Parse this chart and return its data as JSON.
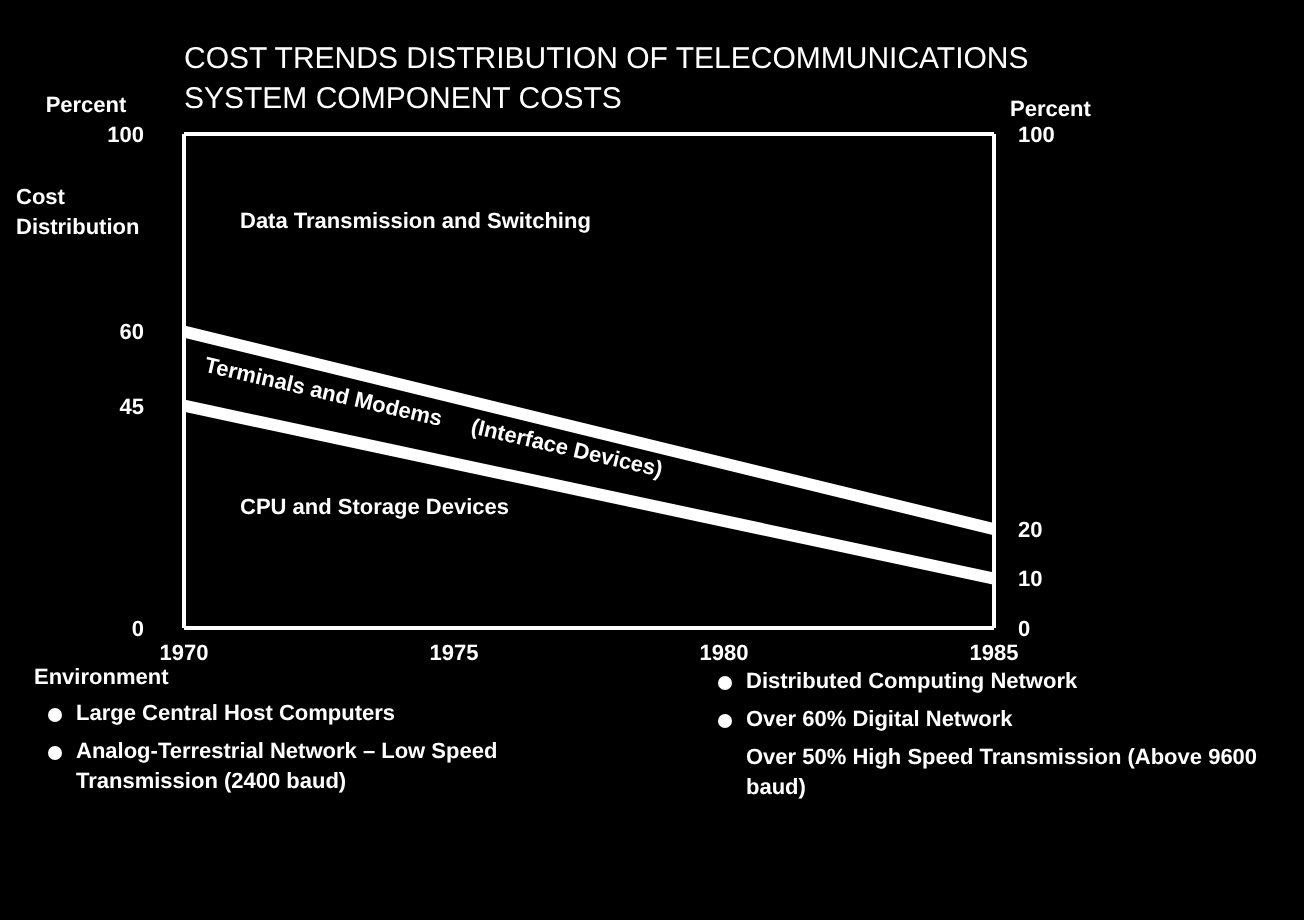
{
  "chart_data": {
    "type": "line",
    "title": "COST TRENDS DISTRIBUTION OF TELECOMMUNICATIONS SYSTEM COMPONENT COSTS",
    "ylabel": "Percent",
    "y2label": "Percent",
    "x": [
      1970,
      1985
    ],
    "series": [
      {
        "color": "#ffffff",
        "values": [
          45,
          10
        ]
      },
      {
        "color": "#ffffff",
        "values": [
          60,
          20
        ]
      }
    ],
    "xlim": [
      1970,
      1985
    ],
    "xticks": [
      1970,
      1975,
      1980,
      1985
    ],
    "ylim": [
      0,
      100
    ],
    "yticks": [
      0,
      45,
      60,
      100
    ],
    "y2lim": [
      0,
      100
    ],
    "y2ticks": [
      0,
      10,
      20,
      100
    ],
    "marker": "none",
    "line_style": "solid",
    "annotations": [
      "Data Transmission and Switching",
      "Terminals and Modems     (Interface Devices)",
      "CPU and Storage Devices",
      "Cost Distribution",
      "Environment",
      "Large Central Host Computers",
      "Analog-Terrestrial Network – Low Speed Transmission (2400 baud)",
      "Distributed Computing Network",
      "Over 60% Digital Network",
      "Over 50% High Speed Transmission (Above 9600 baud)"
    ]
  }
}
